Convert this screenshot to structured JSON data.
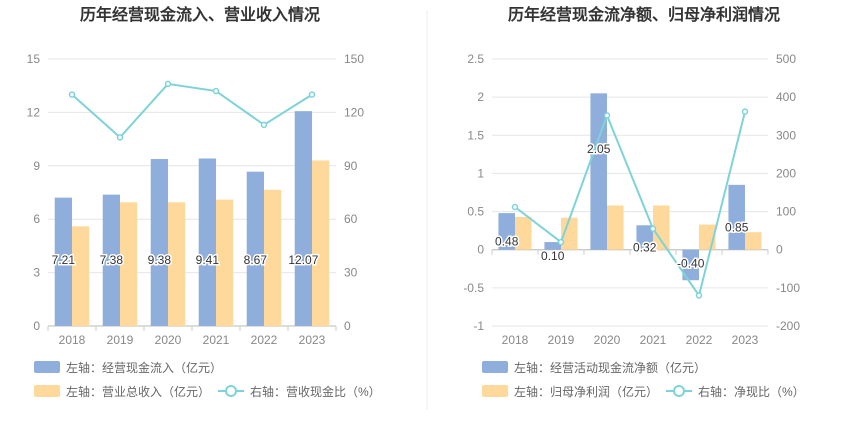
{
  "colors": {
    "bar_a": "#8FAEDB",
    "bar_b": "#FFD99C",
    "line": "#7ED3D8",
    "divider": "#eeeeee"
  },
  "chart_data": [
    {
      "type": "bar",
      "title": "历年经营现金流入、营业收入情况",
      "categories": [
        "2018",
        "2019",
        "2020",
        "2021",
        "2022",
        "2023"
      ],
      "y_left": {
        "min": 0,
        "max": 15,
        "ticks": [
          "0",
          "3",
          "6",
          "9",
          "12",
          "15"
        ]
      },
      "y_right": {
        "min": 0,
        "max": 150,
        "ticks": [
          "0",
          "30",
          "60",
          "90",
          "120",
          "150"
        ]
      },
      "series": [
        {
          "name": "左轴：经营现金流入（亿元）",
          "kind": "bar",
          "axis": "left",
          "values": [
            7.21,
            7.38,
            9.38,
            9.41,
            8.67,
            12.07
          ],
          "labels": [
            "7.21",
            "7.38",
            "9.38",
            "9.41",
            "8.67",
            "12.07"
          ]
        },
        {
          "name": "左轴：营业总收入（亿元）",
          "kind": "bar",
          "axis": "left",
          "values": [
            5.6,
            6.95,
            6.95,
            7.1,
            7.65,
            9.3
          ]
        },
        {
          "name": "右轴：营收现金比（%）",
          "kind": "line",
          "axis": "right",
          "values": [
            130,
            106,
            136,
            132,
            113,
            130
          ]
        }
      ],
      "legend_position": "bottom",
      "grid": true
    },
    {
      "type": "bar",
      "title": "历年经营现金流净额、归母净利润情况",
      "categories": [
        "2018",
        "2019",
        "2020",
        "2021",
        "2022",
        "2023"
      ],
      "y_left": {
        "min": -1,
        "max": 2.5,
        "ticks": [
          "-1",
          "-0.5",
          "0",
          "0.5",
          "1",
          "1.5",
          "2",
          "2.5"
        ]
      },
      "y_right": {
        "min": -200,
        "max": 500,
        "ticks": [
          "-200",
          "-100",
          "0",
          "100",
          "200",
          "300",
          "400",
          "500"
        ]
      },
      "series": [
        {
          "name": "左轴：经营活动现金流净额（亿元）",
          "kind": "bar",
          "axis": "left",
          "values": [
            0.48,
            0.1,
            2.05,
            0.32,
            -0.4,
            0.85
          ],
          "labels": [
            "0.48",
            "0.10",
            "2.05",
            "0.32",
            "-0.40",
            "0.85"
          ]
        },
        {
          "name": "左轴：归母净利润（亿元）",
          "kind": "bar",
          "axis": "left",
          "values": [
            0.43,
            0.42,
            0.58,
            0.58,
            0.33,
            0.23
          ]
        },
        {
          "name": "右轴：净现比（%）",
          "kind": "line",
          "axis": "right",
          "values": [
            112,
            20,
            352,
            55,
            -120,
            362
          ]
        }
      ],
      "legend_position": "bottom",
      "grid": true
    }
  ]
}
